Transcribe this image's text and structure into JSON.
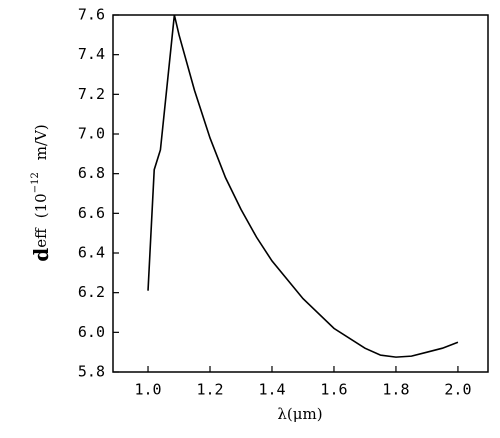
{
  "chart_data": {
    "type": "line",
    "x_label": "λ(μm)",
    "y_label": {
      "symbol": "d",
      "subscript": "eff",
      "prefix": "(10",
      "exponent": "−12",
      "unit": "m/V)"
    },
    "x": [
      1.0,
      1.02,
      1.04,
      1.085,
      1.1,
      1.15,
      1.2,
      1.25,
      1.3,
      1.35,
      1.4,
      1.5,
      1.6,
      1.7,
      1.75,
      1.8,
      1.85,
      1.9,
      1.95,
      2.0
    ],
    "series": [
      {
        "color": "#000000",
        "values": [
          6.21,
          6.82,
          6.92,
          7.6,
          7.5,
          7.22,
          6.98,
          6.78,
          6.62,
          6.48,
          6.36,
          6.17,
          6.02,
          5.92,
          5.885,
          5.875,
          5.88,
          5.9,
          5.92,
          5.95
        ]
      }
    ],
    "xlim": [
      0.887,
      2.097
    ],
    "ylim": [
      5.8,
      7.6
    ],
    "xticks": [
      {
        "value": 1,
        "label": "1.0"
      },
      1.2,
      1.4,
      1.6,
      1.8,
      {
        "value": 2,
        "label": "2.0"
      }
    ],
    "yticks": [
      5.8,
      {
        "value": 6,
        "label": "6.0"
      },
      6.2,
      6.4,
      6.6,
      6.8,
      {
        "value": 7,
        "label": "7.0"
      },
      7.2,
      7.4,
      7.6
    ],
    "grid": false
  }
}
